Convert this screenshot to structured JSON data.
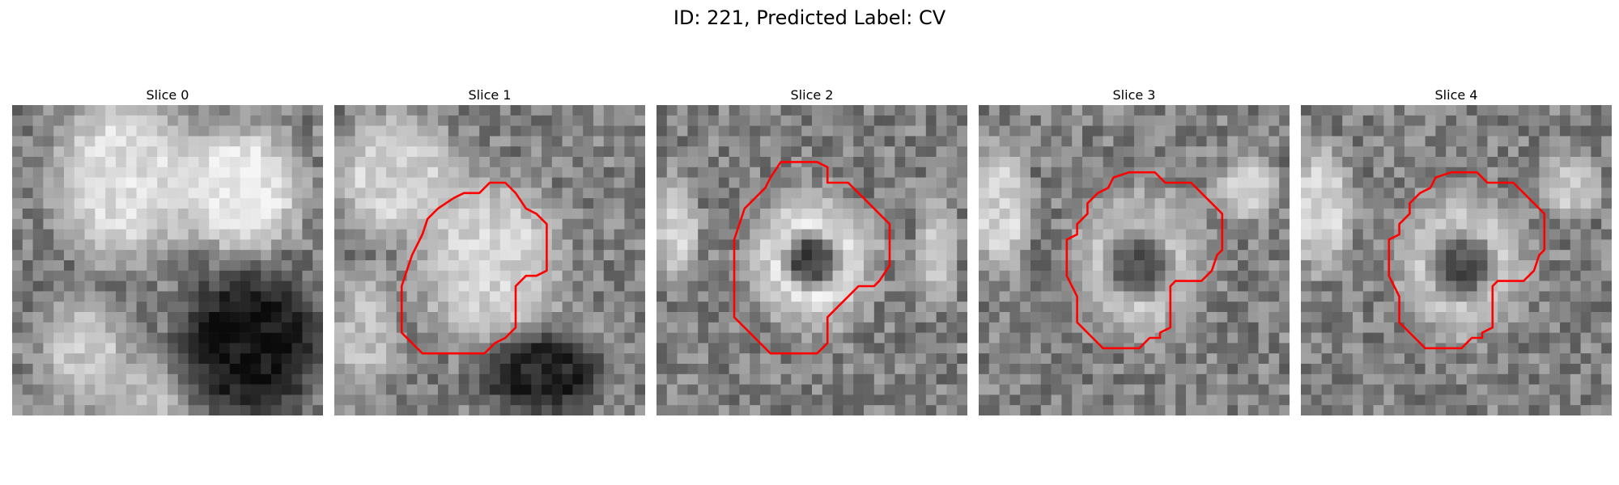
{
  "figure": {
    "title": "ID: 221, Predicted Label: CV"
  },
  "outline_color": "#ff0000",
  "panels": [
    {
      "title": "Slice 0",
      "blobs": [
        {
          "cx": 11,
          "cy": 7,
          "rx": 7,
          "ry": 8,
          "v": 0.9
        },
        {
          "cx": 22,
          "cy": 8,
          "rx": 6,
          "ry": 6,
          "v": 0.95
        },
        {
          "cx": 7,
          "cy": 24,
          "rx": 4,
          "ry": 5,
          "v": 0.8
        },
        {
          "cx": 13,
          "cy": 28,
          "rx": 4,
          "ry": 3,
          "v": 0.75
        },
        {
          "cx": 23,
          "cy": 23,
          "rx": 7,
          "ry": 7,
          "v": 0.05
        }
      ],
      "contour": []
    },
    {
      "title": "Slice 1",
      "blobs": [
        {
          "cx": 6,
          "cy": 7,
          "rx": 6,
          "ry": 6,
          "v": 0.85
        },
        {
          "cx": 15,
          "cy": 15,
          "rx": 7,
          "ry": 8,
          "v": 0.85
        },
        {
          "cx": 20,
          "cy": 26,
          "rx": 6,
          "ry": 4,
          "v": 0.12
        },
        {
          "cx": 3,
          "cy": 22,
          "rx": 3,
          "ry": 6,
          "v": 0.75
        }
      ],
      "contour": [
        [
          15,
          7.5
        ],
        [
          16.5,
          7.5
        ],
        [
          17.5,
          8.5
        ],
        [
          18.5,
          10
        ],
        [
          19.5,
          10.5
        ],
        [
          20.5,
          11.5
        ],
        [
          20.5,
          16
        ],
        [
          19.5,
          16.5
        ],
        [
          18.5,
          16.5
        ],
        [
          17.5,
          17.5
        ],
        [
          17.5,
          21.5
        ],
        [
          16.5,
          22.5
        ],
        [
          15.5,
          23
        ],
        [
          14.5,
          24
        ],
        [
          10,
          24
        ],
        [
          8.5,
          24
        ],
        [
          7.5,
          23
        ],
        [
          6.5,
          22
        ],
        [
          6.5,
          17.5
        ],
        [
          7,
          16
        ],
        [
          7.5,
          14.5
        ],
        [
          8.5,
          12.5
        ],
        [
          9,
          11
        ],
        [
          10,
          10
        ],
        [
          11.5,
          9
        ],
        [
          12.5,
          8.5
        ],
        [
          14,
          8.5
        ]
      ]
    },
    {
      "title": "Slice 2",
      "blobs": [
        {
          "cx": 15,
          "cy": 15,
          "rx": 6,
          "ry": 6.5,
          "v": 0.9
        },
        {
          "cx": 15,
          "cy": 15,
          "rx": 2.5,
          "ry": 2.5,
          "v": 0.25
        },
        {
          "cx": 2,
          "cy": 12,
          "rx": 2,
          "ry": 5,
          "v": 0.85
        },
        {
          "cx": 27,
          "cy": 14,
          "rx": 2,
          "ry": 5,
          "v": 0.8
        }
      ],
      "contour": [
        [
          12,
          5.5
        ],
        [
          15.5,
          5.5
        ],
        [
          16.5,
          6
        ],
        [
          16.5,
          7.5
        ],
        [
          18.5,
          7.5
        ],
        [
          19.5,
          8.5
        ],
        [
          20.5,
          9.5
        ],
        [
          21.5,
          10.5
        ],
        [
          22.5,
          11.5
        ],
        [
          22.5,
          15.5
        ],
        [
          21.5,
          17
        ],
        [
          21,
          17.5
        ],
        [
          19.5,
          17.5
        ],
        [
          18.5,
          18.5
        ],
        [
          17.5,
          19.5
        ],
        [
          16.5,
          20.5
        ],
        [
          16.5,
          23
        ],
        [
          15.5,
          24
        ],
        [
          14.5,
          24
        ],
        [
          11,
          24
        ],
        [
          10,
          23
        ],
        [
          9,
          22
        ],
        [
          8,
          21
        ],
        [
          7.5,
          20.5
        ],
        [
          7.5,
          13
        ],
        [
          8,
          11.5
        ],
        [
          8.5,
          10
        ],
        [
          9.5,
          9
        ],
        [
          10.5,
          8
        ],
        [
          11,
          7
        ]
      ]
    },
    {
      "title": "Slice 3",
      "blobs": [
        {
          "cx": 15.5,
          "cy": 15.5,
          "rx": 6.5,
          "ry": 7,
          "v": 0.8
        },
        {
          "cx": 15.5,
          "cy": 15.5,
          "rx": 3,
          "ry": 3,
          "v": 0.3
        },
        {
          "cx": 2,
          "cy": 10,
          "rx": 3,
          "ry": 6,
          "v": 0.85
        },
        {
          "cx": 26,
          "cy": 8,
          "rx": 3,
          "ry": 3,
          "v": 0.8
        }
      ],
      "contour": [
        [
          14.5,
          6.5
        ],
        [
          17,
          6.5
        ],
        [
          18,
          7.5
        ],
        [
          20.5,
          7.5
        ],
        [
          21.5,
          8.5
        ],
        [
          22.5,
          9.5
        ],
        [
          23.5,
          10.5
        ],
        [
          23.5,
          14
        ],
        [
          23,
          14.5
        ],
        [
          22.5,
          16
        ],
        [
          21.5,
          17
        ],
        [
          19,
          17
        ],
        [
          18.5,
          17.5
        ],
        [
          18.5,
          21.5
        ],
        [
          17.5,
          22
        ],
        [
          17.5,
          22.5
        ],
        [
          16.5,
          22.5
        ],
        [
          15.5,
          23.5
        ],
        [
          12,
          23.5
        ],
        [
          11,
          22.5
        ],
        [
          10,
          21.5
        ],
        [
          9.5,
          21
        ],
        [
          9.5,
          18.5
        ],
        [
          9,
          17.5
        ],
        [
          8.5,
          16.5
        ],
        [
          8.5,
          13
        ],
        [
          9.5,
          12.5
        ],
        [
          9.5,
          11.5
        ],
        [
          10.5,
          10.5
        ],
        [
          10.5,
          9.5
        ],
        [
          11.5,
          8.5
        ],
        [
          12.5,
          8
        ],
        [
          13,
          7
        ]
      ]
    },
    {
      "title": "Slice 4",
      "blobs": [
        {
          "cx": 15.5,
          "cy": 15.5,
          "rx": 6.5,
          "ry": 7,
          "v": 0.8
        },
        {
          "cx": 15.5,
          "cy": 15.5,
          "rx": 3,
          "ry": 3,
          "v": 0.3
        },
        {
          "cx": 2,
          "cy": 10,
          "rx": 3,
          "ry": 6,
          "v": 0.85
        },
        {
          "cx": 26,
          "cy": 8,
          "rx": 3,
          "ry": 3,
          "v": 0.8
        }
      ],
      "contour": [
        [
          14.5,
          6.5
        ],
        [
          17,
          6.5
        ],
        [
          18,
          7.5
        ],
        [
          20.5,
          7.5
        ],
        [
          21.5,
          8.5
        ],
        [
          22.5,
          9.5
        ],
        [
          23.5,
          10.5
        ],
        [
          23.5,
          14
        ],
        [
          23,
          14.5
        ],
        [
          22.5,
          16
        ],
        [
          21.5,
          17
        ],
        [
          19,
          17
        ],
        [
          18.5,
          17.5
        ],
        [
          18.5,
          21.5
        ],
        [
          17.5,
          22
        ],
        [
          17.5,
          22.5
        ],
        [
          16.5,
          22.5
        ],
        [
          15.5,
          23.5
        ],
        [
          12,
          23.5
        ],
        [
          11,
          22.5
        ],
        [
          10,
          21.5
        ],
        [
          9.5,
          21
        ],
        [
          9.5,
          18.5
        ],
        [
          9,
          17.5
        ],
        [
          8.5,
          16.5
        ],
        [
          8.5,
          13
        ],
        [
          9.5,
          12.5
        ],
        [
          9.5,
          11.5
        ],
        [
          10.5,
          10.5
        ],
        [
          10.5,
          9.5
        ],
        [
          11.5,
          8.5
        ],
        [
          12.5,
          8
        ],
        [
          13,
          7
        ]
      ]
    }
  ]
}
